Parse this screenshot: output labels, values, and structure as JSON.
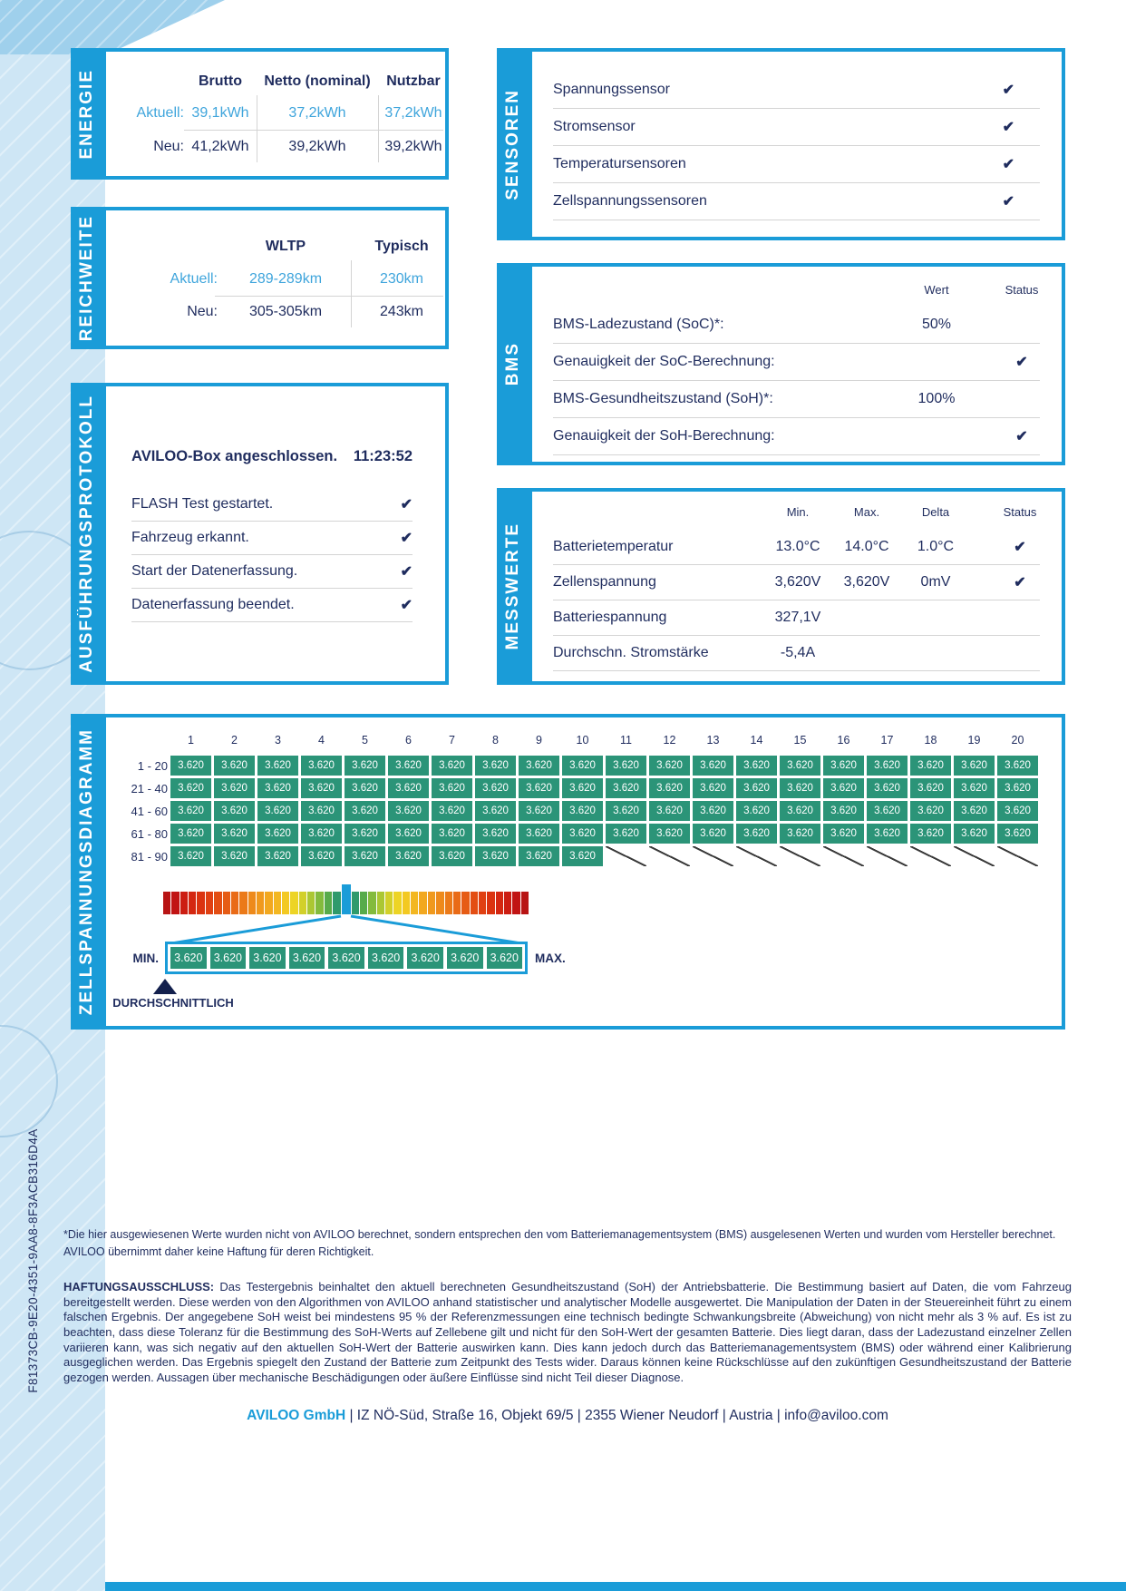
{
  "page": {
    "serial": "F81373CB-9E20-4351-9AA8-8F3ACB316D4A",
    "colors": {
      "brand_blue": "#1A9CD8",
      "navy": "#1F2C5E",
      "light_blue_text": "#3FA5DC",
      "cell_green": "#2B9478",
      "strip_bg": "#CEE6F5"
    }
  },
  "energie": {
    "tab_label": "ENERGIE",
    "columns": [
      "Brutto",
      "Netto (nominal)",
      "Nutzbar"
    ],
    "rows": [
      {
        "label": "Aktuell:",
        "values": [
          "39,1kWh",
          "37,2kWh",
          "37,2kWh"
        ]
      },
      {
        "label": "Neu:",
        "values": [
          "41,2kWh",
          "39,2kWh",
          "39,2kWh"
        ]
      }
    ]
  },
  "reichweite": {
    "tab_label": "REICHWEITE",
    "columns": [
      "WLTP",
      "Typisch"
    ],
    "rows": [
      {
        "label": "Aktuell:",
        "values": [
          "289-289km",
          "230km"
        ]
      },
      {
        "label": "Neu:",
        "values": [
          "305-305km",
          "243km"
        ]
      }
    ]
  },
  "protokoll": {
    "tab_label": "AUSFÜHRUNGSPROTOKOLL",
    "title": "AVILOO-Box angeschlossen.",
    "time": "11:23:52",
    "items": [
      {
        "label": "FLASH Test gestartet.",
        "status": "✔"
      },
      {
        "label": "Fahrzeug erkannt.",
        "status": "✔"
      },
      {
        "label": "Start der Datenerfassung.",
        "status": "✔"
      },
      {
        "label": "Datenerfassung beendet.",
        "status": "✔"
      }
    ]
  },
  "sensoren": {
    "tab_label": "SENSOREN",
    "items": [
      {
        "label": "Spannungssensor",
        "status": "✔"
      },
      {
        "label": "Stromsensor",
        "status": "✔"
      },
      {
        "label": "Temperatursensoren",
        "status": "✔"
      },
      {
        "label": "Zellspannungssensoren",
        "status": "✔"
      }
    ]
  },
  "bms": {
    "tab_label": "BMS",
    "columns": {
      "wert": "Wert",
      "status": "Status"
    },
    "rows": [
      {
        "label": "BMS-Ladezustand (SoC)*:",
        "wert": "50%",
        "status": ""
      },
      {
        "label": "Genauigkeit der SoC-Berechnung:",
        "wert": "",
        "status": "✔"
      },
      {
        "label": "BMS-Gesundheitszustand (SoH)*:",
        "wert": "100%",
        "status": ""
      },
      {
        "label": "Genauigkeit der SoH-Berechnung:",
        "wert": "",
        "status": "✔"
      }
    ]
  },
  "messwerte": {
    "tab_label": "MESSWERTE",
    "columns": [
      "Min.",
      "Max.",
      "Delta",
      "Status"
    ],
    "rows": [
      {
        "label": "Batterietemperatur",
        "min": "13.0°C",
        "max": "14.0°C",
        "delta": "1.0°C",
        "status": "✔"
      },
      {
        "label": "Zellenspannung",
        "min": "3,620V",
        "max": "3,620V",
        "delta": "0mV",
        "status": "✔"
      },
      {
        "label": "Batteriespannung",
        "min": "327,1V",
        "max": "",
        "delta": "",
        "status": ""
      },
      {
        "label": "Durchschn. Stromstärke",
        "min": "-5,4A",
        "max": "",
        "delta": "",
        "status": ""
      }
    ]
  },
  "zellendiagramm": {
    "tab_label": "ZELLSPANNUNGSDIAGRAMM",
    "column_numbers": [
      "1",
      "2",
      "3",
      "4",
      "5",
      "6",
      "7",
      "8",
      "9",
      "10",
      "11",
      "12",
      "13",
      "14",
      "15",
      "16",
      "17",
      "18",
      "19",
      "20"
    ],
    "rows": [
      {
        "label": "1 - 20",
        "values": [
          "3.620",
          "3.620",
          "3.620",
          "3.620",
          "3.620",
          "3.620",
          "3.620",
          "3.620",
          "3.620",
          "3.620",
          "3.620",
          "3.620",
          "3.620",
          "3.620",
          "3.620",
          "3.620",
          "3.620",
          "3.620",
          "3.620",
          "3.620"
        ],
        "missing": 0
      },
      {
        "label": "21 - 40",
        "values": [
          "3.620",
          "3.620",
          "3.620",
          "3.620",
          "3.620",
          "3.620",
          "3.620",
          "3.620",
          "3.620",
          "3.620",
          "3.620",
          "3.620",
          "3.620",
          "3.620",
          "3.620",
          "3.620",
          "3.620",
          "3.620",
          "3.620",
          "3.620"
        ],
        "missing": 0
      },
      {
        "label": "41 - 60",
        "values": [
          "3.620",
          "3.620",
          "3.620",
          "3.620",
          "3.620",
          "3.620",
          "3.620",
          "3.620",
          "3.620",
          "3.620",
          "3.620",
          "3.620",
          "3.620",
          "3.620",
          "3.620",
          "3.620",
          "3.620",
          "3.620",
          "3.620",
          "3.620"
        ],
        "missing": 0
      },
      {
        "label": "61 - 80",
        "values": [
          "3.620",
          "3.620",
          "3.620",
          "3.620",
          "3.620",
          "3.620",
          "3.620",
          "3.620",
          "3.620",
          "3.620",
          "3.620",
          "3.620",
          "3.620",
          "3.620",
          "3.620",
          "3.620",
          "3.620",
          "3.620",
          "3.620",
          "3.620"
        ],
        "missing": 0
      },
      {
        "label": "81 - 90",
        "values": [
          "3.620",
          "3.620",
          "3.620",
          "3.620",
          "3.620",
          "3.620",
          "3.620",
          "3.620",
          "3.620",
          "3.620"
        ],
        "missing": 10
      }
    ],
    "scale": {
      "marker_index": 21,
      "marker_color": "#1A9CD8",
      "colors": [
        "#B81414",
        "#C11414",
        "#CC1D12",
        "#D42711",
        "#DB3310",
        "#E04012",
        "#E34E13",
        "#E65C15",
        "#E96B17",
        "#EB7A19",
        "#EE8A1B",
        "#F0991D",
        "#F2A81F",
        "#F3B721",
        "#F3C922",
        "#EDD425",
        "#D2D02A",
        "#ABC733",
        "#83BB3D",
        "#57AB4B",
        "#2F9A6C",
        "#2F9A6C",
        "#57AB4B",
        "#83BB3D",
        "#ABC733",
        "#D2D02A",
        "#EDD425",
        "#F3C922",
        "#F3B721",
        "#F2A81F",
        "#F0991D",
        "#EE8A1B",
        "#EB7A19",
        "#E96B17",
        "#E65C15",
        "#E34E13",
        "#E04012",
        "#DB3310",
        "#D42711",
        "#CC1D12",
        "#C11414",
        "#B81414"
      ]
    },
    "zoom_cells": [
      "3.620",
      "3.620",
      "3.620",
      "3.620",
      "3.620",
      "3.620",
      "3.620",
      "3.620",
      "3.620"
    ],
    "min_label": "MIN.",
    "max_label": "MAX.",
    "avg_label": "DURCHSCHNITTLICH"
  },
  "footnote": "*Die hier ausgewiesenen Werte wurden nicht von AVILOO berechnet, sondern entsprechen den vom Batteriemanagementsystem (BMS) ausgelesenen Werten und wurden vom Hersteller berechnet. AVILOO übernimmt daher keine Haftung für deren Richtigkeit.",
  "disclaimer": {
    "title": "HAFTUNGSAUSSCHLUSS:",
    "text": " Das Testergebnis beinhaltet den aktuell berechneten Gesundheitszustand (SoH) der Antriebsbatterie. Die Bestimmung basiert auf Daten, die vom Fahrzeug bereitgestellt werden. Diese werden von den Algorithmen von AVILOO anhand statistischer und analytischer Modelle ausgewertet. Die Manipulation der Daten in der Steuereinheit führt zu einem falschen Ergebnis. Der angegebene SoH weist bei mindestens 95 % der Referenzmessungen eine technisch bedingte Schwankungsbreite (Abweichung) von nicht mehr als 3 % auf. Es ist zu beachten, dass diese Toleranz für die Bestimmung des SoH-Werts auf Zellebene gilt und nicht für den SoH-Wert der gesamten Batterie. Dies liegt daran, dass der Ladezustand einzelner Zellen variieren kann, was sich negativ auf den aktuellen SoH-Wert der Batterie auswirken kann. Dies kann jedoch durch das Batteriemanagementsystem (BMS) oder während einer Kalibrierung ausgeglichen werden. Das Ergebnis spiegelt den Zustand der Batterie zum Zeitpunkt des Tests wider. Daraus können keine Rückschlüsse auf den zukünftigen Gesundheitszustand der Batterie gezogen werden. Aussagen über mechanische Beschädigungen oder äußere Einflüsse sind nicht Teil dieser Diagnose."
  },
  "contact": {
    "company": "AVILOO GmbH",
    "rest": " | IZ NÖ-Süd, Straße 16, Objekt 69/5 | 2355 Wiener Neudorf | Austria | info@aviloo.com"
  }
}
